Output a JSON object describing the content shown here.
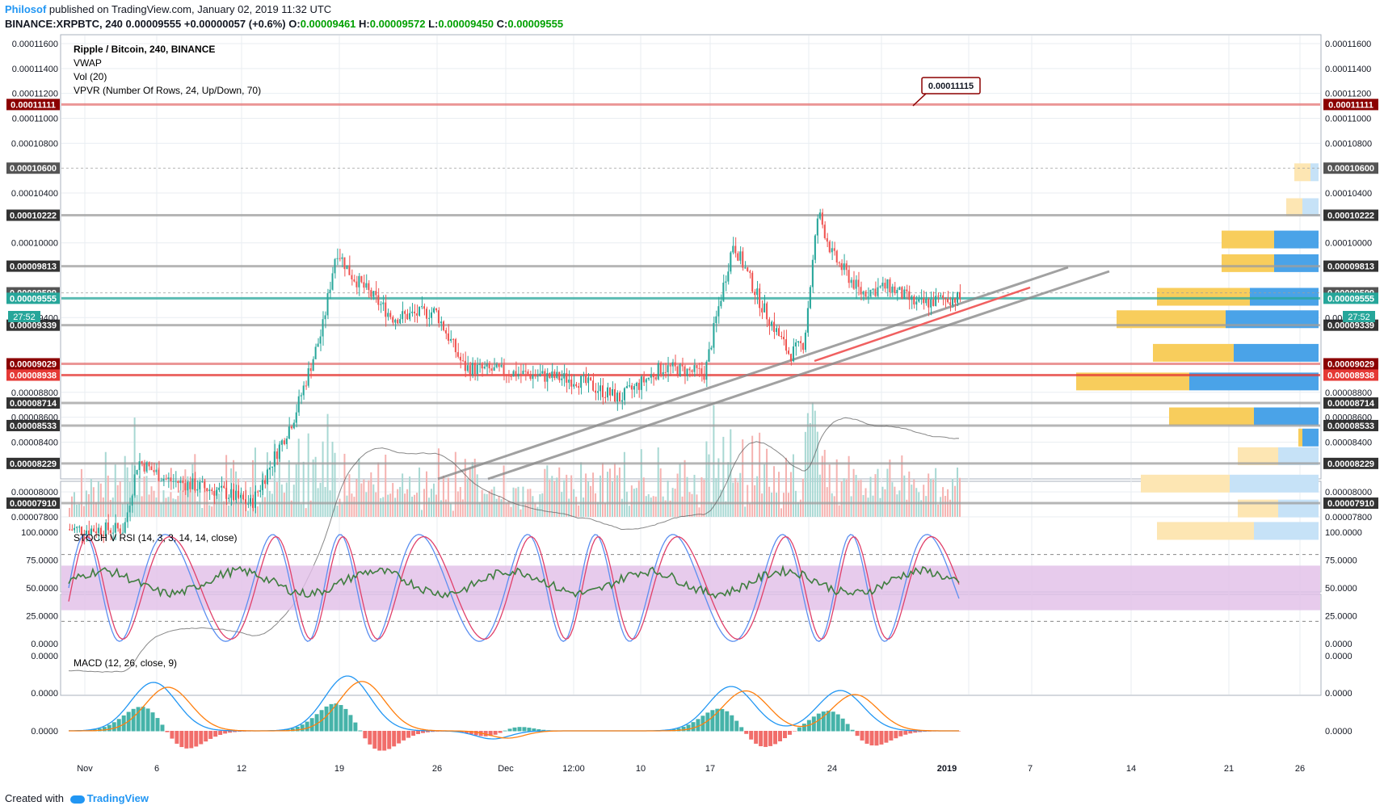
{
  "header": {
    "author": "Philosof",
    "published": "published on TradingView.com, January 02, 2019 11:32 UTC",
    "symbol": "BINANCE:XRPBTC, 240",
    "last": "0.00009555",
    "change": "+0.00000057 (+0.6%)",
    "o_label": "O:",
    "o": "0.00009461",
    "h_label": "H:",
    "h": "0.00009572",
    "l_label": "L:",
    "l": "0.00009450",
    "c_label": "C:",
    "c": "0.00009555"
  },
  "legend": {
    "title": "Ripple / Bitcoin, 240, BINANCE",
    "vwap": "VWAP",
    "vol": "Vol (20)",
    "vpvr": "VPVR (Number Of Rows, 24, Up/Down, 70)"
  },
  "callout": "0.00011115",
  "countdown": "27:52",
  "price_ticks": [
    "0.00011600",
    "0.00011400",
    "0.00011200",
    "0.00011000",
    "0.00010800",
    "0.00010400",
    "0.00010000",
    "0.00009400",
    "0.00008800",
    "0.00008600",
    "0.00008400",
    "0.00008000",
    "0.00007800"
  ],
  "level_labels": [
    {
      "v": 0.00011111,
      "text": "0.00011111",
      "color": "#8b0000",
      "line": "#e57373"
    },
    {
      "v": 0.000106,
      "text": "0.00010600",
      "color": "#555555",
      "line": "#9e9e9e"
    },
    {
      "v": 0.00010222,
      "text": "0.00010222",
      "color": "#333333",
      "line": "#9e9e9e"
    },
    {
      "v": 9.813e-05,
      "text": "0.00009813",
      "color": "#333333",
      "line": "#9e9e9e"
    },
    {
      "v": 9.599e-05,
      "text": "0.00009599",
      "color": "#555555",
      "line": "#9e9e9e"
    },
    {
      "v": 9.555e-05,
      "text": "0.00009555",
      "color": "#26a69a",
      "line": "#26a69a"
    },
    {
      "v": 9.339e-05,
      "text": "0.00009339",
      "color": "#333333",
      "line": "#9e9e9e"
    },
    {
      "v": 9.029e-05,
      "text": "0.00009029",
      "color": "#8b0000",
      "line": "#e57373"
    },
    {
      "v": 8.938e-05,
      "text": "0.00008938",
      "color": "#e53935",
      "line": "#e53935"
    },
    {
      "v": 8.714e-05,
      "text": "0.00008714",
      "color": "#333333",
      "line": "#9e9e9e"
    },
    {
      "v": 8.533e-05,
      "text": "0.00008533",
      "color": "#333333",
      "line": "#9e9e9e"
    },
    {
      "v": 8.229e-05,
      "text": "0.00008229",
      "color": "#333333",
      "line": "#9e9e9e"
    },
    {
      "v": 7.91e-05,
      "text": "0.00007910",
      "color": "#333333",
      "line": "#9e9e9e"
    }
  ],
  "stoch": {
    "label": "STOCH V RSI (14, 3, 3, 14, 14, close)",
    "ticks": [
      "100.0000",
      "75.0000",
      "50.0000",
      "25.0000",
      "0.0000"
    ]
  },
  "macd": {
    "label": "MACD (12, 26, close, 9)",
    "ticks": [
      "0.0000",
      "0.0000",
      "0.0000"
    ]
  },
  "x_labels": [
    "Nov",
    "6",
    "12",
    "19",
    "26",
    "Dec",
    "12:00",
    "10",
    "17",
    "24",
    "2019",
    "7",
    "14",
    "21",
    "26"
  ],
  "footer": {
    "created": "Created with",
    "brand": "TradingView"
  },
  "colors": {
    "up": "#26a69a",
    "down": "#ef5350",
    "grid": "#e9eef2",
    "rsi_band": "#e1bee7"
  },
  "chart_data": {
    "type": "candlestick",
    "title": "Ripple / Bitcoin, 240, BINANCE",
    "last_price": 9.555e-05,
    "resistance_support_levels": [
      0.00011111,
      0.000106,
      0.00010222,
      9.813e-05,
      9.599e-05,
      9.339e-05,
      9.029e-05,
      8.938e-05,
      8.714e-05,
      8.533e-05,
      8.229e-05,
      7.91e-05
    ],
    "price_path": [
      {
        "date": "Nov 1",
        "close": 7.7e-05
      },
      {
        "date": "Nov 5",
        "close": 7.7e-05
      },
      {
        "date": "Nov 6",
        "close": 8.25e-05
      },
      {
        "date": "Nov 8",
        "close": 8.1e-05
      },
      {
        "date": "Nov 12",
        "close": 8e-05
      },
      {
        "date": "Nov 14",
        "close": 7.9e-05
      },
      {
        "date": "Nov 17",
        "close": 8.6e-05
      },
      {
        "date": "Nov 19",
        "close": 9.3e-05
      },
      {
        "date": "Nov 20",
        "close": 9.95e-05
      },
      {
        "date": "Nov 21",
        "close": 9.75e-05
      },
      {
        "date": "Nov 24",
        "close": 9.4e-05
      },
      {
        "date": "Nov 27",
        "close": 9.45e-05
      },
      {
        "date": "Nov 29",
        "close": 9e-05
      },
      {
        "date": "Dec 3",
        "close": 8.95e-05
      },
      {
        "date": "Dec 7",
        "close": 8.9e-05
      },
      {
        "date": "Dec 10",
        "close": 8.75e-05
      },
      {
        "date": "Dec 13",
        "close": 9e-05
      },
      {
        "date": "Dec 16",
        "close": 8.95e-05
      },
      {
        "date": "Dec 17",
        "close": 9.5e-05
      },
      {
        "date": "Dec 18",
        "close": 0.0001
      },
      {
        "date": "Dec 20",
        "close": 9.5e-05
      },
      {
        "date": "Dec 22",
        "close": 9.1e-05
      },
      {
        "date": "Dec 23",
        "close": 9.2e-05
      },
      {
        "date": "Dec 24",
        "close": 0.0001025
      },
      {
        "date": "Dec 25",
        "close": 9.9e-05
      },
      {
        "date": "Dec 27",
        "close": 9.6e-05
      },
      {
        "date": "Dec 29",
        "close": 9.65e-05
      },
      {
        "date": "Dec 31",
        "close": 9.5e-05
      },
      {
        "date": "Jan 2",
        "close": 9.555e-05
      }
    ]
  }
}
